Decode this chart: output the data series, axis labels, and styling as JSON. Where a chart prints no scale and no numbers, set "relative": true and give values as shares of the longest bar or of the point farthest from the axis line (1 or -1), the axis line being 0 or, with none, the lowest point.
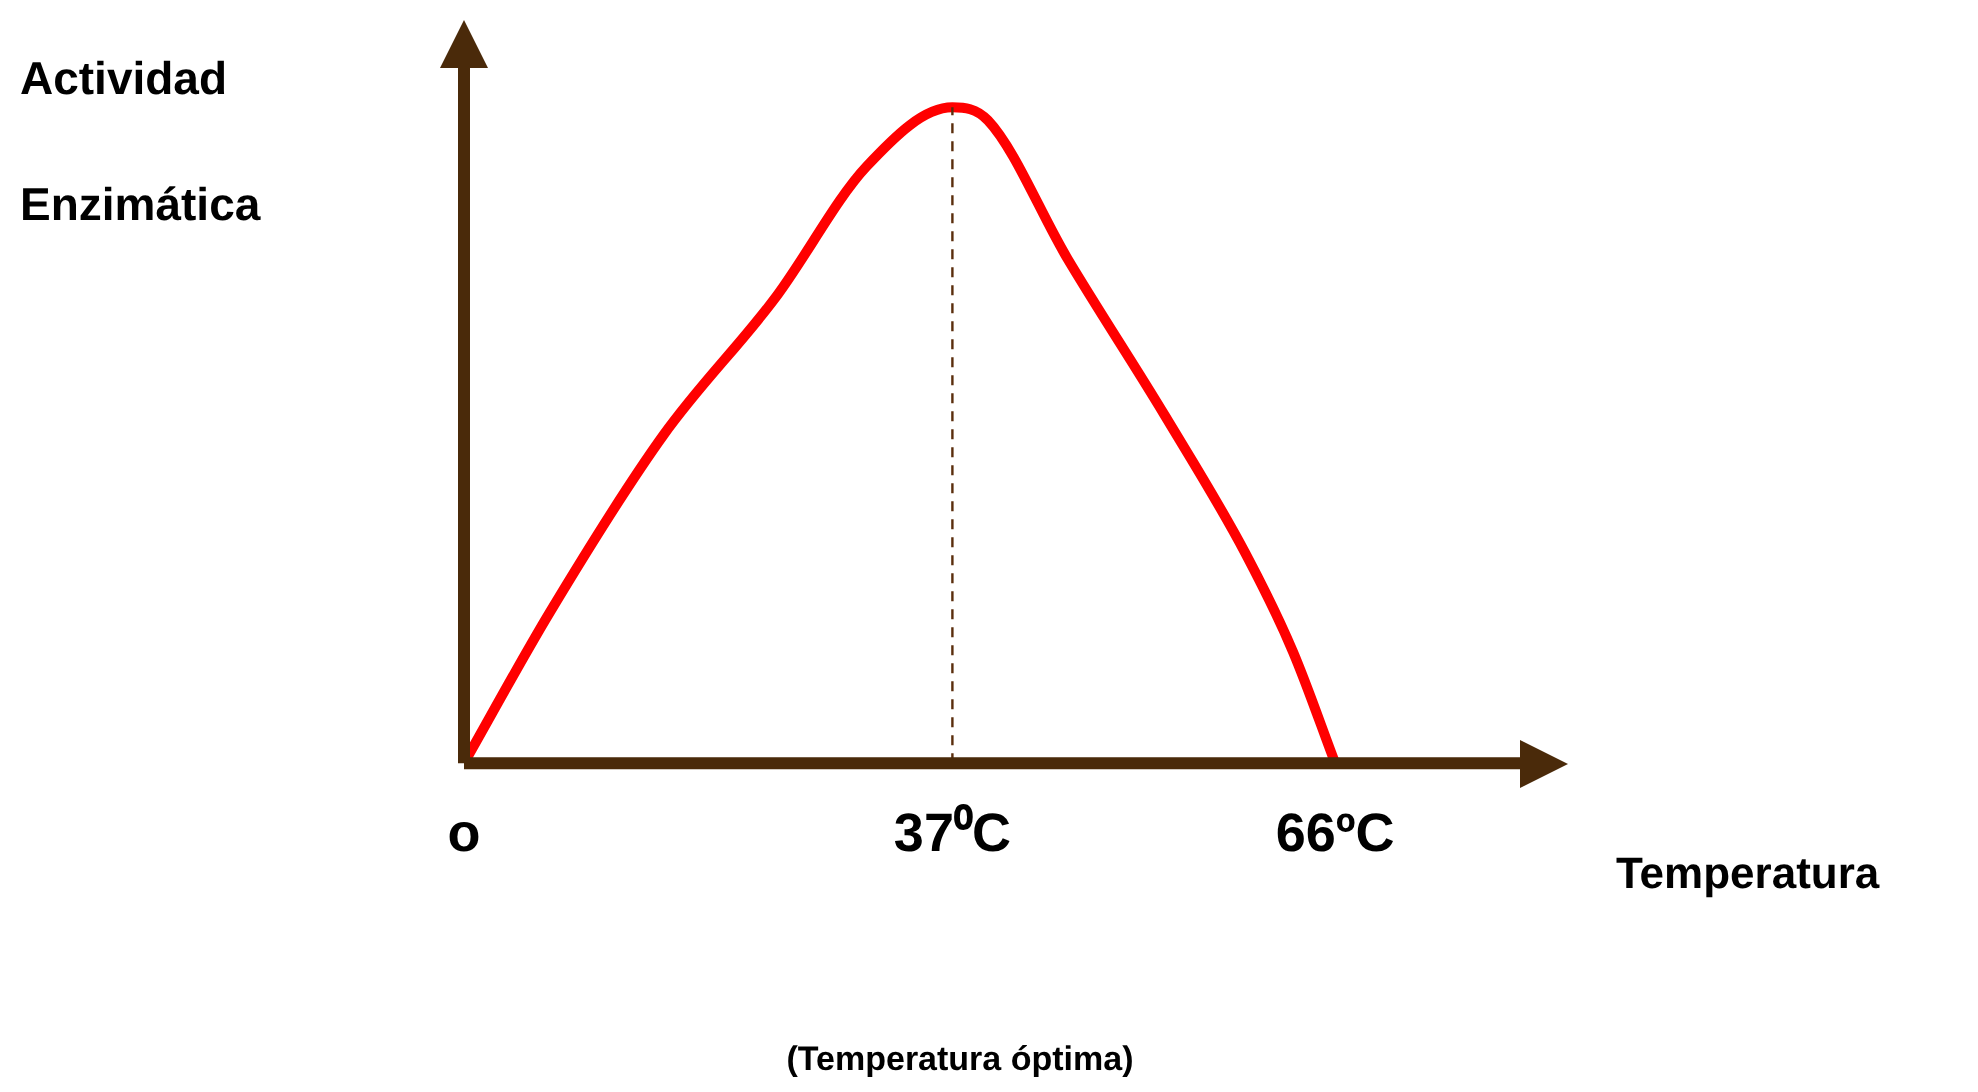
{
  "chart_data": {
    "type": "line",
    "relative": true,
    "ylabel": "Actividad Enzimática",
    "xlabel": "Temperatura",
    "annotations": [
      "(Temperatura óptima)"
    ],
    "xlim": [
      0,
      80
    ],
    "xticks": [
      {
        "value": 0,
        "label": "o"
      },
      {
        "value": 37,
        "label": "37⁰C"
      },
      {
        "value": 66,
        "label": "66ºC"
      }
    ],
    "grid": false,
    "legend": false,
    "marker": "none",
    "line_style": "solid",
    "series": [
      {
        "color": "#ff0000",
        "x": [
          0,
          6.5,
          15.1,
          23.6,
          30.5,
          37,
          39.7,
          45.7,
          53.1,
          59.2,
          62.8,
          66
        ],
        "values": [
          0,
          0.23,
          0.5,
          0.71,
          0.91,
          1,
          0.98,
          0.77,
          0.53,
          0.32,
          0.17,
          0
        ]
      }
    ],
    "ref_lines": [
      {
        "axis": "x",
        "value": 37,
        "color": "#5a2d0c",
        "line_style": "dashed"
      }
    ]
  }
}
